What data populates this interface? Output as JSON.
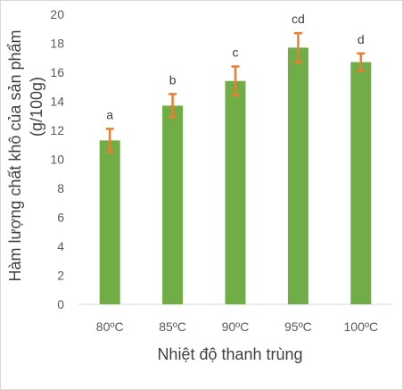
{
  "chart_data": {
    "type": "bar",
    "categories": [
      "80ºC",
      "85ºC",
      "90ºC",
      "95ºC",
      "100ºC"
    ],
    "values": [
      11.3,
      13.7,
      15.4,
      17.7,
      16.7
    ],
    "error": [
      0.8,
      0.8,
      1.0,
      1.0,
      0.6
    ],
    "significance_labels": [
      "a",
      "b",
      "c",
      "cd",
      "d"
    ],
    "xlabel": "Nhiệt độ thanh trùng",
    "ylabel_line1": "Hàm lượng chất khô của sản phẩm",
    "ylabel_line2": "(g/100g)",
    "ylim": [
      0,
      20
    ],
    "yticks": [
      0,
      2,
      4,
      6,
      8,
      10,
      12,
      14,
      16,
      18,
      20
    ],
    "grid": false,
    "bar_color": "#70ad47",
    "error_color": "#ed7d31",
    "axis_color": "#d9d9d9"
  }
}
